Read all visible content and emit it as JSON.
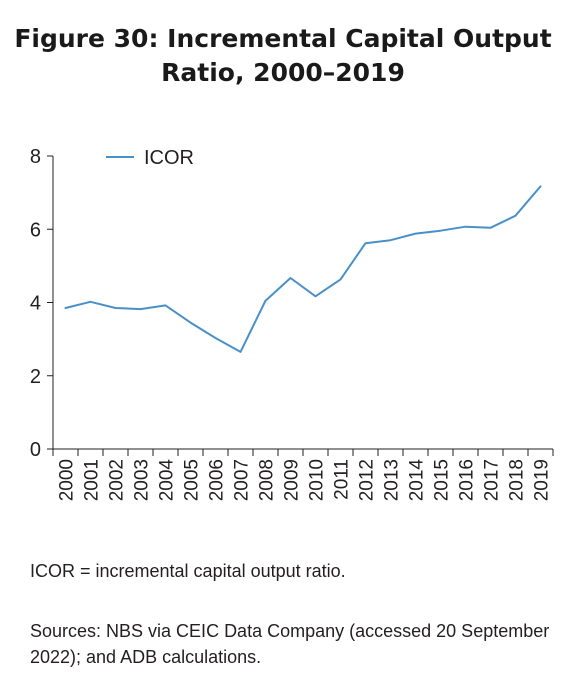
{
  "figure": {
    "title_line1": "Figure 30: Incremental Capital Output",
    "title_line2": "Ratio, 2000–2019"
  },
  "notes": {
    "abbreviation": "ICOR = incremental capital output ratio.",
    "sources": "Sources: NBS via CEIC Data Company (accessed 20 September 2022); and ADB calculations."
  },
  "colors": {
    "series": "#4a90c8",
    "axis": "#231f20"
  },
  "chart_data": {
    "type": "line",
    "x": [
      "2000",
      "2001",
      "2002",
      "2003",
      "2004",
      "2005",
      "2006",
      "2007",
      "2008",
      "2009",
      "2010",
      "2011",
      "2012",
      "2013",
      "2014",
      "2015",
      "2016",
      "2017",
      "2018",
      "2019"
    ],
    "series": [
      {
        "name": "ICOR",
        "values": [
          3.85,
          4.02,
          3.85,
          3.82,
          3.92,
          3.45,
          3.03,
          2.65,
          4.05,
          4.67,
          4.17,
          4.63,
          5.62,
          5.7,
          5.88,
          5.96,
          6.07,
          6.04,
          6.37,
          7.17
        ]
      }
    ],
    "ylim": [
      0,
      8
    ],
    "yticks": [
      "0",
      "2",
      "4",
      "6",
      "8"
    ],
    "legend_position": "top-left",
    "grid": false
  }
}
